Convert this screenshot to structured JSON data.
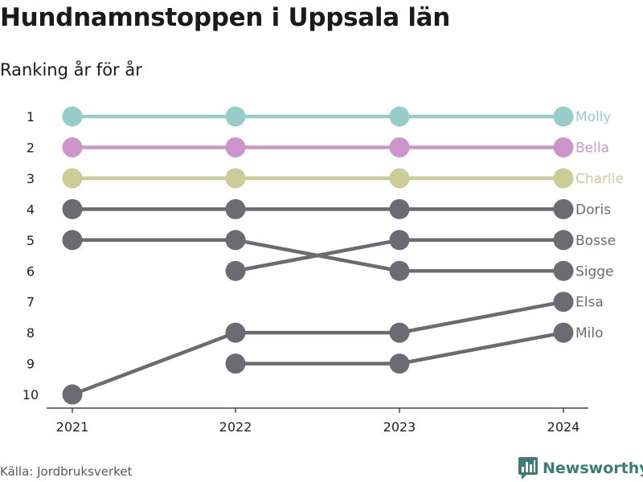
{
  "header": {
    "title": "Hundnamnstoppen i Uppsala län",
    "subtitle": "Ranking år för år"
  },
  "footer": {
    "source": "Källa: Jordbruksverket",
    "brand": "Newsworthy",
    "brand_icon": "bar-chart-logo-icon"
  },
  "colors": {
    "molly": "#96cdc9",
    "bella": "#cc96cc",
    "charlie": "#cccc96",
    "other": "#6b6b73",
    "brand": "#3a7d76"
  },
  "chart_data": {
    "type": "line",
    "x": [
      "2021",
      "2022",
      "2023",
      "2024"
    ],
    "y_ticks": [
      "1",
      "2",
      "3",
      "4",
      "5",
      "6",
      "7",
      "8",
      "9",
      "10"
    ],
    "ylim": [
      1,
      10
    ],
    "y_inverted": true,
    "series": [
      {
        "name": "Molly",
        "values": [
          1,
          1,
          1,
          1
        ],
        "color": "#96cdc9"
      },
      {
        "name": "Bella",
        "values": [
          2,
          2,
          2,
          2
        ],
        "color": "#cc96cc"
      },
      {
        "name": "Charlie",
        "values": [
          3,
          3,
          3,
          3
        ],
        "color": "#cccc96"
      },
      {
        "name": "Doris",
        "values": [
          4,
          4,
          4,
          4
        ],
        "color": "#6b6b73"
      },
      {
        "name": "Bosse",
        "values": [
          null,
          6,
          5,
          5
        ],
        "color": "#6b6b73"
      },
      {
        "name": "Sigge",
        "values": [
          5,
          5,
          6,
          6
        ],
        "color": "#6b6b73"
      },
      {
        "name": "Elsa",
        "values": [
          10,
          8,
          8,
          7
        ],
        "color": "#6b6b73"
      },
      {
        "name": "Milo",
        "values": [
          null,
          9,
          9,
          8
        ],
        "color": "#6b6b73"
      }
    ]
  }
}
